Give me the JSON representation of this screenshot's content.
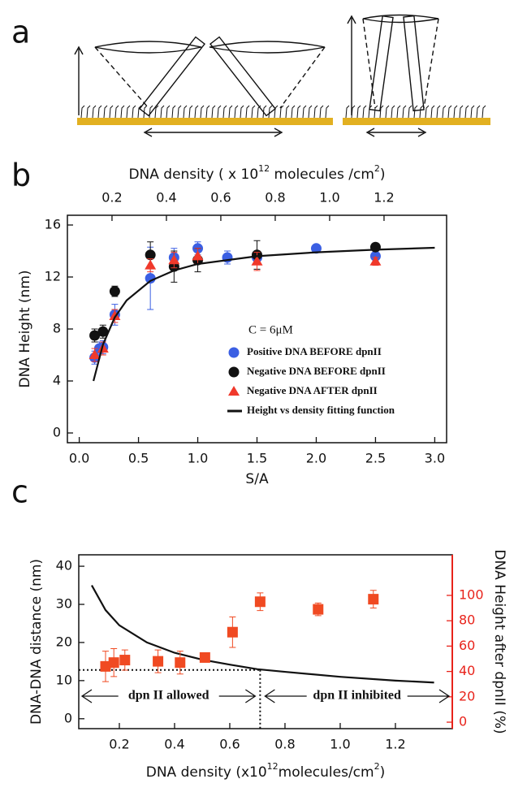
{
  "panels": [
    "a",
    "b",
    "c"
  ],
  "chart_data": [
    {
      "type": "scatter",
      "xlabel": "S/A",
      "ylabel": "DNA Height (nm)",
      "x2label": [
        "DNA density ( x 10",
        "12",
        " molecules /cm",
        "2",
        ")"
      ],
      "xlim": [
        -0.1,
        3.1
      ],
      "ylim": [
        -0.75,
        16.75
      ],
      "x2lim": [
        0.036,
        1.43
      ],
      "xticks": [
        {
          "value": 0,
          "label": "0.0"
        },
        0.5,
        {
          "value": 1,
          "label": "1.0"
        },
        1.5,
        {
          "value": 2,
          "label": "2.0"
        },
        2.5,
        {
          "value": 3,
          "label": "3.0"
        }
      ],
      "yticks": [
        0,
        4,
        8,
        12,
        16
      ],
      "x2ticks": [
        0.2,
        0.4,
        0.6,
        0.8,
        {
          "value": 1,
          "label": "1.0"
        },
        1.2
      ],
      "legend": "lower right",
      "legend_title": "C = 6μM",
      "series": [
        {
          "name": "Positive DNA BEFORE dpnII",
          "color": "#3b5fe3",
          "marker": "circle",
          "mode": "markers",
          "x": [
            0.13,
            0.17,
            0.2,
            0.3,
            0.6,
            0.8,
            1.0,
            1.25,
            1.5,
            2.0,
            2.5
          ],
          "values": [
            5.8,
            6.5,
            6.6,
            9.1,
            11.9,
            13.5,
            14.2,
            13.5,
            13.5,
            14.2,
            13.6
          ],
          "errors": [
            0.5,
            0.5,
            0.5,
            0.8,
            2.4,
            0.7,
            0.5,
            0.5,
            0.5,
            0.3,
            0.5
          ]
        },
        {
          "name": "Negative DNA BEFORE dpnII",
          "color": "#111111",
          "marker": "circle",
          "mode": "markers",
          "x": [
            0.13,
            0.2,
            0.3,
            0.6,
            0.8,
            1.0,
            1.5,
            2.5
          ],
          "values": [
            7.5,
            7.8,
            10.9,
            13.7,
            12.8,
            13.3,
            13.7,
            14.3
          ],
          "errors": [
            0.5,
            0.5,
            0.4,
            1.0,
            1.2,
            0.9,
            1.1,
            0.3
          ]
        },
        {
          "name": "Negative DNA AFTER dpnII",
          "color": "#f0392b",
          "marker": "triangle",
          "mode": "markers",
          "x": [
            0.13,
            0.2,
            0.3,
            0.6,
            0.8,
            1.0,
            1.5,
            2.5
          ],
          "values": [
            6.0,
            6.5,
            9.0,
            12.9,
            13.3,
            13.6,
            13.2,
            13.2
          ],
          "errors": [
            0.5,
            0.5,
            0.5,
            0.5,
            0.6,
            0.6,
            0.7,
            0.3
          ]
        },
        {
          "name": "Height vs density fitting function",
          "color": "#111111",
          "mode": "line",
          "x": [
            0.12,
            0.2,
            0.3,
            0.4,
            0.6,
            0.8,
            1.0,
            1.5,
            2.0,
            2.5,
            3.0
          ],
          "values": [
            4.0,
            6.8,
            8.9,
            10.2,
            11.7,
            12.5,
            13.0,
            13.6,
            13.9,
            14.1,
            14.25
          ]
        }
      ]
    },
    {
      "type": "scatter",
      "xlabel": [
        "DNA density (x10",
        "12",
        "molecules/cm",
        "2",
        ")"
      ],
      "ylabel": "DNA-DNA distance (nm)",
      "y2label": "DNA Height after dpnII (%)",
      "y2color": "#e8231b",
      "xlim": [
        0.053,
        1.406
      ],
      "ylim": [
        -2.6,
        43
      ],
      "y2lim": [
        -5.1,
        132
      ],
      "xticks": [
        0.2,
        0.4,
        0.6,
        0.8,
        {
          "value": 1,
          "label": "1.0"
        },
        1.2
      ],
      "yticks": [
        0,
        10,
        20,
        30,
        40
      ],
      "y2ticks": [
        0,
        20,
        40,
        60,
        80,
        100
      ],
      "threshold": {
        "x": 0.71,
        "y": 12.8
      },
      "annotations": [
        "dpn II allowed",
        "dpn II inhibited"
      ],
      "series": [
        {
          "color": "#111111",
          "mode": "line",
          "x": [
            0.1,
            0.15,
            0.2,
            0.3,
            0.4,
            0.5,
            0.6,
            0.7,
            0.8,
            1.0,
            1.2,
            1.34
          ],
          "values": [
            35,
            28.5,
            24.5,
            20,
            17.3,
            15.5,
            14.2,
            13,
            12.3,
            11,
            10,
            9.5
          ]
        },
        {
          "color": "#f04a22",
          "mode": "markers",
          "marker": "square",
          "axis": "y2",
          "x": [
            0.15,
            0.18,
            0.22,
            0.34,
            0.42,
            0.51,
            0.61,
            0.71,
            0.92,
            1.12
          ],
          "values": [
            44,
            47,
            49,
            48,
            47,
            51,
            71,
            95,
            89,
            97
          ],
          "errors": [
            12,
            11,
            8,
            9,
            9,
            2,
            12,
            7,
            5,
            7
          ]
        }
      ]
    }
  ]
}
